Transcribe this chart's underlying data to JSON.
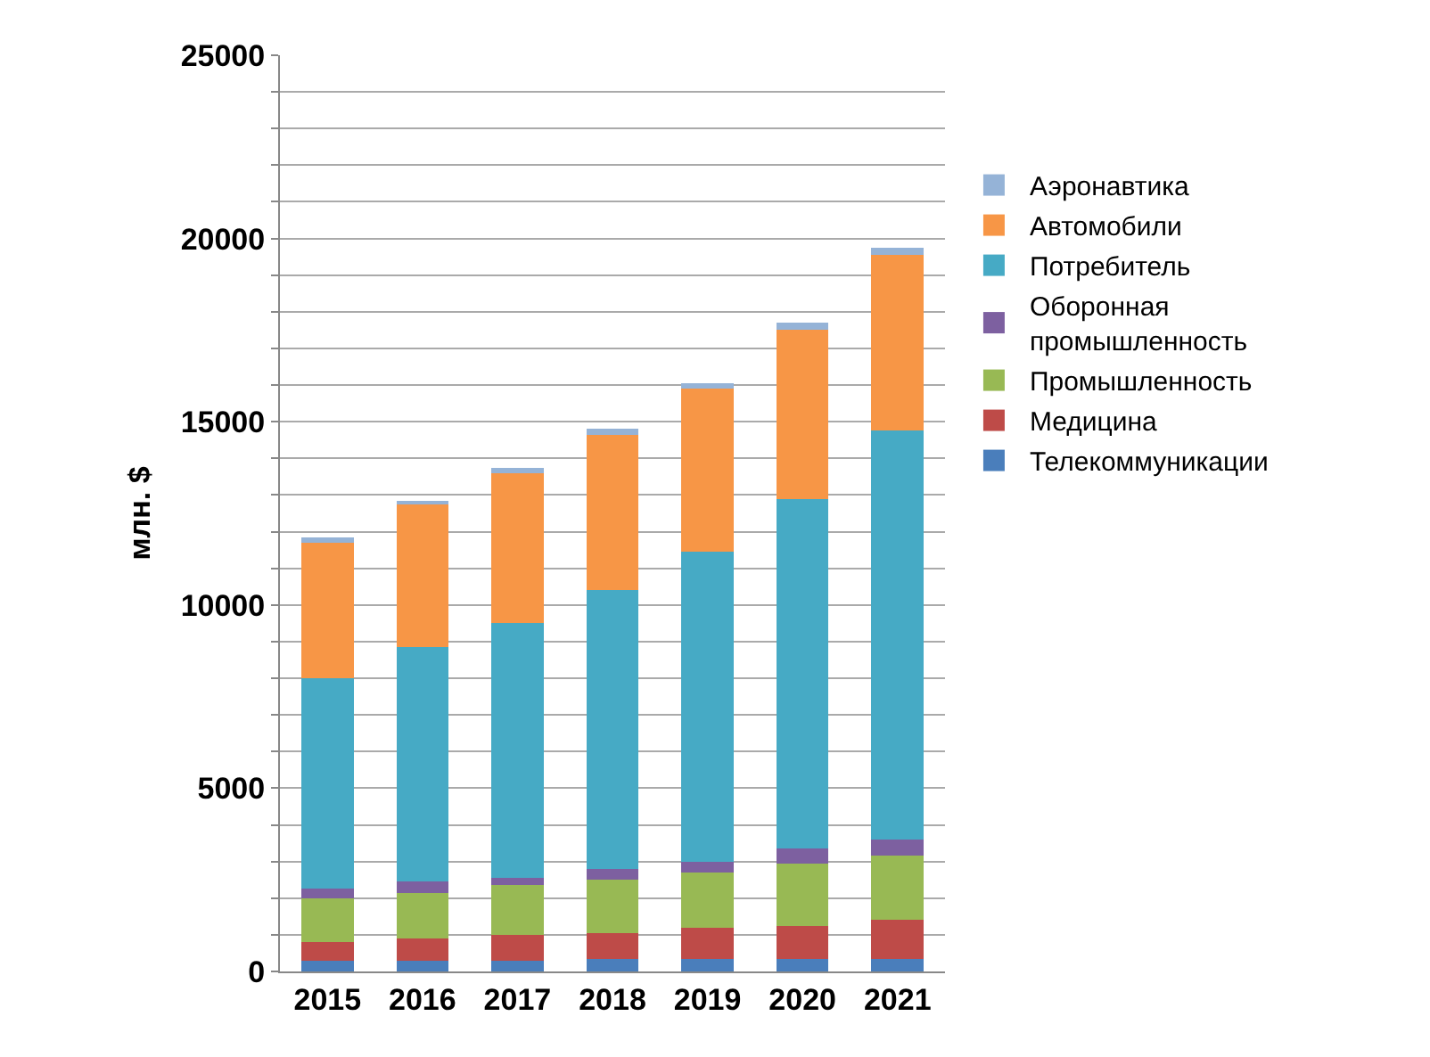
{
  "chart_data": {
    "type": "bar",
    "stacked": true,
    "ylabel": "млн. $",
    "categories": [
      "2015",
      "2016",
      "2017",
      "2018",
      "2019",
      "2020",
      "2021"
    ],
    "series": [
      {
        "name": "Телекоммуникации",
        "color": "#4a7ebb",
        "values": [
          300,
          300,
          300,
          350,
          350,
          350,
          350
        ]
      },
      {
        "name": "Медицина",
        "color": "#be4b48",
        "values": [
          500,
          600,
          700,
          700,
          850,
          900,
          1050
        ]
      },
      {
        "name": "Промышленность",
        "color": "#98b954",
        "values": [
          1200,
          1250,
          1350,
          1450,
          1500,
          1700,
          1750
        ]
      },
      {
        "name": "Оборонная промышленность",
        "color": "#7d60a0",
        "values": [
          250,
          300,
          200,
          300,
          300,
          400,
          450
        ]
      },
      {
        "name": "Потребитель",
        "color": "#46aac5",
        "values": [
          5750,
          6400,
          6950,
          7600,
          8450,
          9550,
          11150
        ]
      },
      {
        "name": "Автомобили",
        "color": "#f79646",
        "values": [
          3700,
          3900,
          4100,
          4250,
          4450,
          4600,
          4800
        ]
      },
      {
        "name": "Аэронавтика",
        "color": "#95b3d7",
        "values": [
          150,
          100,
          150,
          150,
          150,
          200,
          200
        ]
      }
    ],
    "ylim": [
      0,
      25000
    ],
    "yticks": [
      0,
      {
        "value": 1000,
        "label": null
      },
      {
        "value": 2000,
        "label": null
      },
      {
        "value": 3000,
        "label": null
      },
      {
        "value": 4000,
        "label": null
      },
      5000,
      {
        "value": 6000,
        "label": null
      },
      {
        "value": 7000,
        "label": null
      },
      {
        "value": 8000,
        "label": null
      },
      {
        "value": 9000,
        "label": null
      },
      10000,
      {
        "value": 11000,
        "label": null
      },
      {
        "value": 12000,
        "label": null
      },
      {
        "value": 13000,
        "label": null
      },
      {
        "value": 14000,
        "label": null
      },
      15000,
      {
        "value": 16000,
        "label": null
      },
      {
        "value": 17000,
        "label": null
      },
      {
        "value": 18000,
        "label": null
      },
      {
        "value": 19000,
        "label": null
      },
      20000,
      {
        "value": 21000,
        "label": null
      },
      {
        "value": 22000,
        "label": null
      },
      {
        "value": 23000,
        "label": null
      },
      {
        "value": 24000,
        "label": null
      },
      25000
    ],
    "grid": true,
    "legend": "right"
  }
}
